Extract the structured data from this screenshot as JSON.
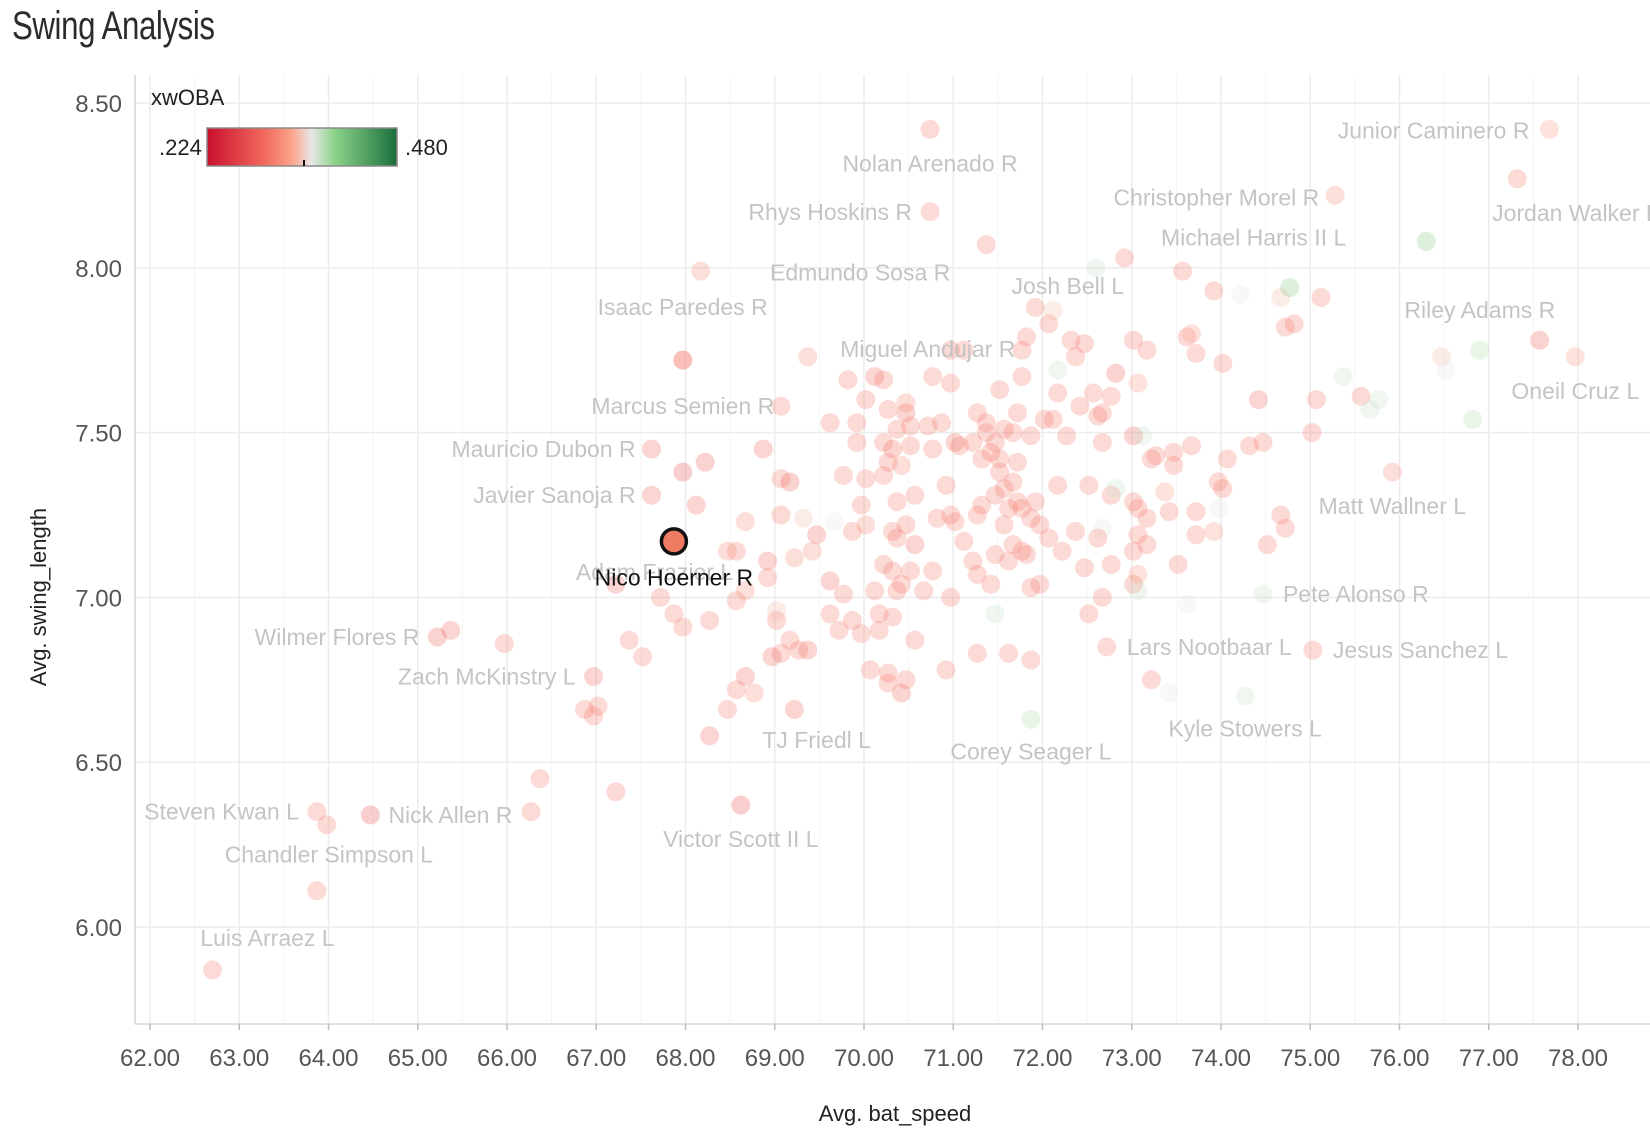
{
  "title": "Swing Analysis",
  "chart_data": {
    "type": "scatter",
    "title": "Swing Analysis",
    "xlabel": "Avg. bat_speed",
    "ylabel": "Avg. swing_length",
    "xlim": [
      61.85,
      78.8
    ],
    "ylim": [
      5.7,
      8.6
    ],
    "x_ticks": [
      "62.00",
      "63.00",
      "64.00",
      "65.00",
      "66.00",
      "67.00",
      "68.00",
      "69.00",
      "70.00",
      "71.00",
      "72.00",
      "73.00",
      "74.00",
      "75.00",
      "76.00",
      "77.00",
      "78.00"
    ],
    "y_ticks": [
      "6.00",
      "6.50",
      "7.00",
      "7.50",
      "8.00",
      "8.50"
    ],
    "grid": true,
    "colors": {
      "low": "#c8102e",
      "mid_low": "#fca58c",
      "mid": "#eeeeee",
      "mid_high": "#8dd48a",
      "high": "#1a6e3c",
      "highlight_fill": "#f07b63",
      "highlight_stroke": "#111111"
    },
    "legend": {
      "title": "xwOBA",
      "min_label": ".224",
      "max_label": ".480",
      "placement": "top-left"
    },
    "highlight": {
      "name": "Nico Hoerner R",
      "bat_speed": 67.87,
      "swing_length": 7.17
    },
    "labeled_points": [
      {
        "name": "Nolan Arenado R",
        "bat_speed": 70.74,
        "swing_length": 8.42,
        "xwoba": 0.31
      },
      {
        "name": "Rhys Hoskins R",
        "bat_speed": 70.74,
        "swing_length": 8.17,
        "xwoba": 0.31
      },
      {
        "name": "Junior Caminero R",
        "bat_speed": 77.68,
        "swing_length": 8.42,
        "xwoba": 0.33
      },
      {
        "name": "Christopher Morel R",
        "bat_speed": 75.28,
        "swing_length": 8.22,
        "xwoba": 0.32
      },
      {
        "name": "Jordan Walker R",
        "bat_speed": 77.32,
        "swing_length": 8.27,
        "xwoba": 0.31
      },
      {
        "name": "Michael Harris II L",
        "bat_speed": 76.3,
        "swing_length": 8.08,
        "xwoba": 0.39
      },
      {
        "name": "Edmundo Sosa R",
        "bat_speed": 71.37,
        "swing_length": 8.07,
        "xwoba": 0.31
      },
      {
        "name": "Josh Bell L",
        "bat_speed": 72.6,
        "swing_length": 8.0,
        "xwoba": 0.36
      },
      {
        "name": "Isaac Paredes R",
        "bat_speed": 68.17,
        "swing_length": 7.99,
        "xwoba": 0.32
      },
      {
        "name": "Miguel Andujar R",
        "bat_speed": 69.37,
        "swing_length": 7.73,
        "xwoba": 0.32
      },
      {
        "name": "Riley Adams R",
        "bat_speed": 76.9,
        "swing_length": 7.75,
        "xwoba": 0.37
      },
      {
        "name": "Oneil Cruz L",
        "bat_speed": 77.97,
        "swing_length": 7.73,
        "xwoba": 0.33
      },
      {
        "name": "Marcus Semien R",
        "bat_speed": 67.97,
        "swing_length": 7.72,
        "xwoba": 0.31
      },
      {
        "name": "Mauricio Dubon R",
        "bat_speed": 67.62,
        "swing_length": 7.45,
        "xwoba": 0.3
      },
      {
        "name": "Javier Sanoja R",
        "bat_speed": 67.62,
        "swing_length": 7.31,
        "xwoba": 0.3
      },
      {
        "name": "Matt Wallner L",
        "bat_speed": 75.92,
        "swing_length": 7.38,
        "xwoba": 0.32
      },
      {
        "name": "Adam Frazier L",
        "bat_speed": 67.22,
        "swing_length": 7.04,
        "xwoba": 0.3
      },
      {
        "name": "Pete Alonso R",
        "bat_speed": 74.47,
        "swing_length": 7.01,
        "xwoba": 0.36
      },
      {
        "name": "Wilmer Flores R",
        "bat_speed": 65.22,
        "swing_length": 6.88,
        "xwoba": 0.29
      },
      {
        "name": "Lars Nootbaar L",
        "bat_speed": 72.72,
        "swing_length": 6.85,
        "xwoba": 0.31
      },
      {
        "name": "Jesus Sanchez L",
        "bat_speed": 75.03,
        "swing_length": 6.84,
        "xwoba": 0.31
      },
      {
        "name": "Zach McKinstry L",
        "bat_speed": 66.97,
        "swing_length": 6.76,
        "xwoba": 0.3
      },
      {
        "name": "Kyle Stowers L",
        "bat_speed": 74.27,
        "swing_length": 6.7,
        "xwoba": 0.36
      },
      {
        "name": "TJ Friedl L",
        "bat_speed": 68.27,
        "swing_length": 6.58,
        "xwoba": 0.3
      },
      {
        "name": "Corey Seager L",
        "bat_speed": 71.87,
        "swing_length": 6.63,
        "xwoba": 0.37
      },
      {
        "name": "Steven Kwan L",
        "bat_speed": 63.87,
        "swing_length": 6.35,
        "xwoba": 0.31
      },
      {
        "name": "Nick Allen R",
        "bat_speed": 64.47,
        "swing_length": 6.34,
        "xwoba": 0.28
      },
      {
        "name": "Victor Scott II L",
        "bat_speed": 68.62,
        "swing_length": 6.37,
        "xwoba": 0.28
      },
      {
        "name": "Chandler Simpson L",
        "bat_speed": 63.87,
        "swing_length": 6.11,
        "xwoba": 0.31
      },
      {
        "name": "Luis Arraez L",
        "bat_speed": 62.7,
        "swing_length": 5.87,
        "xwoba": 0.31
      }
    ],
    "points": [
      [
        63.98,
        6.31,
        0.31
      ],
      [
        65.37,
        6.9,
        0.3
      ],
      [
        65.97,
        6.86,
        0.31
      ],
      [
        66.37,
        6.45,
        0.31
      ],
      [
        66.27,
        6.35,
        0.31
      ],
      [
        67.22,
        6.41,
        0.31
      ],
      [
        66.87,
        6.66,
        0.31
      ],
      [
        67.02,
        6.67,
        0.31
      ],
      [
        66.97,
        6.64,
        0.31
      ],
      [
        67.37,
        6.87,
        0.31
      ],
      [
        67.52,
        6.82,
        0.31
      ],
      [
        67.72,
        7.0,
        0.31
      ],
      [
        67.87,
        6.95,
        0.31
      ],
      [
        67.97,
        6.91,
        0.31
      ],
      [
        68.27,
        6.93,
        0.31
      ],
      [
        68.47,
        6.66,
        0.31
      ],
      [
        68.57,
        6.72,
        0.31
      ],
      [
        68.77,
        6.71,
        0.32
      ],
      [
        68.67,
        6.76,
        0.3
      ],
      [
        68.57,
        6.99,
        0.31
      ],
      [
        68.67,
        7.02,
        0.32
      ],
      [
        68.57,
        7.14,
        0.31
      ],
      [
        68.47,
        7.14,
        0.32
      ],
      [
        68.67,
        7.23,
        0.32
      ],
      [
        68.92,
        7.06,
        0.31
      ],
      [
        68.92,
        7.11,
        0.3
      ],
      [
        68.87,
        7.45,
        0.3
      ],
      [
        68.22,
        7.41,
        0.29
      ],
      [
        67.97,
        7.38,
        0.28
      ],
      [
        68.12,
        7.28,
        0.3
      ],
      [
        67.97,
        7.72,
        0.31
      ],
      [
        69.07,
        7.58,
        0.31
      ],
      [
        69.07,
        7.25,
        0.31
      ],
      [
        69.07,
        7.36,
        0.31
      ],
      [
        69.17,
        7.35,
        0.29
      ],
      [
        69.32,
        7.24,
        0.34
      ],
      [
        69.47,
        7.19,
        0.3
      ],
      [
        69.42,
        7.14,
        0.32
      ],
      [
        69.22,
        7.12,
        0.32
      ],
      [
        69.02,
        6.93,
        0.31
      ],
      [
        68.97,
        6.82,
        0.3
      ],
      [
        69.07,
        6.83,
        0.31
      ],
      [
        69.17,
        6.87,
        0.31
      ],
      [
        69.27,
        6.84,
        0.31
      ],
      [
        69.37,
        6.84,
        0.3
      ],
      [
        69.22,
        6.66,
        0.3
      ],
      [
        69.02,
        6.96,
        0.34
      ],
      [
        69.62,
        7.05,
        0.3
      ],
      [
        69.67,
        7.23,
        0.35
      ],
      [
        69.62,
        6.95,
        0.31
      ],
      [
        69.72,
        6.9,
        0.31
      ],
      [
        69.87,
        6.93,
        0.31
      ],
      [
        69.97,
        6.89,
        0.31
      ],
      [
        69.87,
        7.2,
        0.31
      ],
      [
        70.02,
        7.22,
        0.32
      ],
      [
        69.97,
        7.28,
        0.31
      ],
      [
        70.02,
        7.36,
        0.31
      ],
      [
        69.77,
        7.37,
        0.31
      ],
      [
        69.92,
        7.47,
        0.31
      ],
      [
        69.92,
        7.53,
        0.31
      ],
      [
        69.62,
        7.53,
        0.31
      ],
      [
        70.02,
        7.6,
        0.31
      ],
      [
        69.82,
        7.66,
        0.31
      ],
      [
        70.12,
        7.67,
        0.3
      ],
      [
        70.22,
        7.66,
        0.31
      ],
      [
        70.27,
        7.57,
        0.31
      ],
      [
        70.47,
        7.59,
        0.32
      ],
      [
        70.47,
        7.56,
        0.3
      ],
      [
        70.52,
        7.46,
        0.31
      ],
      [
        70.32,
        7.45,
        0.3
      ],
      [
        70.42,
        7.4,
        0.32
      ],
      [
        70.27,
        7.41,
        0.31
      ],
      [
        70.22,
        7.37,
        0.31
      ],
      [
        70.37,
        7.29,
        0.31
      ],
      [
        70.47,
        7.22,
        0.31
      ],
      [
        70.32,
        7.2,
        0.31
      ],
      [
        70.57,
        7.16,
        0.3
      ],
      [
        70.22,
        7.1,
        0.31
      ],
      [
        70.32,
        7.08,
        0.31
      ],
      [
        70.42,
        7.04,
        0.31
      ],
      [
        70.37,
        7.02,
        0.31
      ],
      [
        70.32,
        6.94,
        0.31
      ],
      [
        70.17,
        6.9,
        0.31
      ],
      [
        70.57,
        6.87,
        0.31
      ],
      [
        70.07,
        6.78,
        0.31
      ],
      [
        70.27,
        6.77,
        0.31
      ],
      [
        70.27,
        6.74,
        0.31
      ],
      [
        70.47,
        6.75,
        0.31
      ],
      [
        70.42,
        6.71,
        0.3
      ],
      [
        70.67,
        7.02,
        0.31
      ],
      [
        70.77,
        7.08,
        0.31
      ],
      [
        70.92,
        7.34,
        0.31
      ],
      [
        70.77,
        7.45,
        0.31
      ],
      [
        70.72,
        7.52,
        0.31
      ],
      [
        70.87,
        7.53,
        0.31
      ],
      [
        71.02,
        7.47,
        0.3
      ],
      [
        71.07,
        7.46,
        0.31
      ],
      [
        70.97,
        7.25,
        0.31
      ],
      [
        71.02,
        7.23,
        0.31
      ],
      [
        70.92,
        6.78,
        0.31
      ],
      [
        70.97,
        7.0,
        0.31
      ],
      [
        71.27,
        6.83,
        0.31
      ],
      [
        71.27,
        7.07,
        0.31
      ],
      [
        71.27,
        7.25,
        0.31
      ],
      [
        71.32,
        7.42,
        0.31
      ],
      [
        71.37,
        7.5,
        0.31
      ],
      [
        71.27,
        7.56,
        0.31
      ],
      [
        71.37,
        7.53,
        0.31
      ],
      [
        71.47,
        7.47,
        0.31
      ],
      [
        71.57,
        7.51,
        0.31
      ],
      [
        71.67,
        7.5,
        0.31
      ],
      [
        71.72,
        7.56,
        0.31
      ],
      [
        71.52,
        7.42,
        0.31
      ],
      [
        71.47,
        7.31,
        0.31
      ],
      [
        71.57,
        7.33,
        0.31
      ],
      [
        71.67,
        7.35,
        0.31
      ],
      [
        71.72,
        7.29,
        0.31
      ],
      [
        71.77,
        7.27,
        0.31
      ],
      [
        71.62,
        7.27,
        0.31
      ],
      [
        71.57,
        7.22,
        0.31
      ],
      [
        71.47,
        7.13,
        0.31
      ],
      [
        71.42,
        7.04,
        0.31
      ],
      [
        71.47,
        6.95,
        0.36
      ],
      [
        71.62,
        6.83,
        0.31
      ],
      [
        71.87,
        6.81,
        0.31
      ],
      [
        71.87,
        7.03,
        0.31
      ],
      [
        71.97,
        7.04,
        0.31
      ],
      [
        71.82,
        7.13,
        0.31
      ],
      [
        71.87,
        7.24,
        0.31
      ],
      [
        71.97,
        7.22,
        0.31
      ],
      [
        72.07,
        7.18,
        0.31
      ],
      [
        71.92,
        7.29,
        0.31
      ],
      [
        71.87,
        7.49,
        0.31
      ],
      [
        72.02,
        7.54,
        0.31
      ],
      [
        72.12,
        7.54,
        0.31
      ],
      [
        71.77,
        7.75,
        0.31
      ],
      [
        71.82,
        7.79,
        0.31
      ],
      [
        72.07,
        7.83,
        0.31
      ],
      [
        71.92,
        7.88,
        0.31
      ],
      [
        72.12,
        7.87,
        0.34
      ],
      [
        72.17,
        7.69,
        0.36
      ],
      [
        72.37,
        7.73,
        0.31
      ],
      [
        72.47,
        7.77,
        0.31
      ],
      [
        72.32,
        7.78,
        0.31
      ],
      [
        72.67,
        7.56,
        0.31
      ],
      [
        72.62,
        7.55,
        0.31
      ],
      [
        72.77,
        7.61,
        0.31
      ],
      [
        72.82,
        7.68,
        0.29
      ],
      [
        72.77,
        7.31,
        0.31
      ],
      [
        72.52,
        7.34,
        0.31
      ],
      [
        72.67,
        7.21,
        0.35
      ],
      [
        72.62,
        7.18,
        0.31
      ],
      [
        72.67,
        7.47,
        0.31
      ],
      [
        72.77,
        7.1,
        0.31
      ],
      [
        72.47,
        7.09,
        0.31
      ],
      [
        72.52,
        6.95,
        0.31
      ],
      [
        72.67,
        7.0,
        0.31
      ],
      [
        72.82,
        7.33,
        0.36
      ],
      [
        72.92,
        8.03,
        0.31
      ],
      [
        73.02,
        7.78,
        0.31
      ],
      [
        73.07,
        7.65,
        0.33
      ],
      [
        73.17,
        7.75,
        0.31
      ],
      [
        73.02,
        7.49,
        0.3
      ],
      [
        73.12,
        7.49,
        0.36
      ],
      [
        73.22,
        7.42,
        0.31
      ],
      [
        73.27,
        7.43,
        0.31
      ],
      [
        73.02,
        7.29,
        0.31
      ],
      [
        73.07,
        7.27,
        0.31
      ],
      [
        73.17,
        7.24,
        0.31
      ],
      [
        73.37,
        7.32,
        0.33
      ],
      [
        73.42,
        7.26,
        0.31
      ],
      [
        73.07,
        7.19,
        0.31
      ],
      [
        73.17,
        7.16,
        0.31
      ],
      [
        73.02,
        7.14,
        0.31
      ],
      [
        73.07,
        7.07,
        0.33
      ],
      [
        73.02,
        7.04,
        0.31
      ],
      [
        73.07,
        7.02,
        0.36
      ],
      [
        73.52,
        7.1,
        0.31
      ],
      [
        73.62,
        6.98,
        0.35
      ],
      [
        73.22,
        6.75,
        0.31
      ],
      [
        73.42,
        6.71,
        0.35
      ],
      [
        73.47,
        7.44,
        0.31
      ],
      [
        73.47,
        7.4,
        0.31
      ],
      [
        73.67,
        7.46,
        0.31
      ],
      [
        73.62,
        7.79,
        0.31
      ],
      [
        73.67,
        7.8,
        0.33
      ],
      [
        73.72,
        7.74,
        0.31
      ],
      [
        73.57,
        7.99,
        0.31
      ],
      [
        73.92,
        7.93,
        0.31
      ],
      [
        74.22,
        7.92,
        0.35
      ],
      [
        74.02,
        7.71,
        0.31
      ],
      [
        73.72,
        7.26,
        0.31
      ],
      [
        73.72,
        7.19,
        0.31
      ],
      [
        73.92,
        7.2,
        0.33
      ],
      [
        73.97,
        7.35,
        0.31
      ],
      [
        74.02,
        7.33,
        0.31
      ],
      [
        74.07,
        7.42,
        0.31
      ],
      [
        73.97,
        7.27,
        0.35
      ],
      [
        74.32,
        7.46,
        0.31
      ],
      [
        74.47,
        7.47,
        0.31
      ],
      [
        74.42,
        7.6,
        0.3
      ],
      [
        74.52,
        7.16,
        0.31
      ],
      [
        74.67,
        7.25,
        0.31
      ],
      [
        74.72,
        7.21,
        0.31
      ],
      [
        74.67,
        7.91,
        0.34
      ],
      [
        74.77,
        7.94,
        0.39
      ],
      [
        74.72,
        7.82,
        0.31
      ],
      [
        74.82,
        7.83,
        0.31
      ],
      [
        75.12,
        7.91,
        0.31
      ],
      [
        75.02,
        7.5,
        0.31
      ],
      [
        75.07,
        7.6,
        0.31
      ],
      [
        75.37,
        7.67,
        0.36
      ],
      [
        75.57,
        7.61,
        0.31
      ],
      [
        75.67,
        7.57,
        0.36
      ],
      [
        75.77,
        7.6,
        0.36
      ],
      [
        76.47,
        7.73,
        0.34
      ],
      [
        76.52,
        7.69,
        0.35
      ],
      [
        76.82,
        7.54,
        0.37
      ],
      [
        77.57,
        7.78,
        0.29
      ],
      [
        70.12,
        7.02,
        0.31
      ],
      [
        70.52,
        7.08,
        0.31
      ],
      [
        71.32,
        7.28,
        0.31
      ],
      [
        71.52,
        7.38,
        0.31
      ],
      [
        71.72,
        7.41,
        0.31
      ],
      [
        72.17,
        7.34,
        0.31
      ],
      [
        69.77,
        7.01,
        0.31
      ],
      [
        70.17,
        6.95,
        0.31
      ],
      [
        70.37,
        7.18,
        0.31
      ],
      [
        70.57,
        7.31,
        0.31
      ],
      [
        70.82,
        7.24,
        0.31
      ],
      [
        71.12,
        7.17,
        0.31
      ],
      [
        71.22,
        7.11,
        0.31
      ],
      [
        71.62,
        7.11,
        0.31
      ],
      [
        71.77,
        7.14,
        0.31
      ],
      [
        72.22,
        7.14,
        0.31
      ],
      [
        72.37,
        7.2,
        0.31
      ],
      [
        71.67,
        7.16,
        0.31
      ],
      [
        70.52,
        7.52,
        0.31
      ],
      [
        70.77,
        7.67,
        0.31
      ],
      [
        70.97,
        7.65,
        0.31
      ],
      [
        71.12,
        7.75,
        0.31
      ],
      [
        70.97,
        7.75,
        0.31
      ],
      [
        71.52,
        7.63,
        0.31
      ],
      [
        71.77,
        7.67,
        0.31
      ],
      [
        72.17,
        7.62,
        0.31
      ],
      [
        72.42,
        7.58,
        0.31
      ],
      [
        72.57,
        7.62,
        0.31
      ],
      [
        72.27,
        7.49,
        0.31
      ],
      [
        70.22,
        7.47,
        0.31
      ],
      [
        70.37,
        7.51,
        0.31
      ],
      [
        71.22,
        7.47,
        0.31
      ],
      [
        71.42,
        7.44,
        0.31
      ]
    ]
  }
}
